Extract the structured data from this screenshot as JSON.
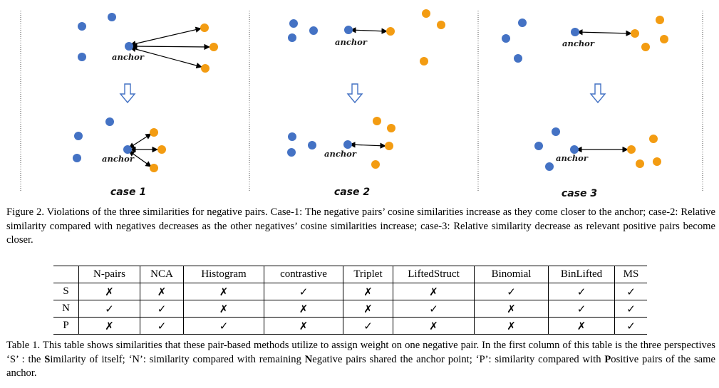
{
  "figure": {
    "anchor_label": "anchor",
    "cases": [
      {
        "label": "case 1"
      },
      {
        "label": "case 2"
      },
      {
        "label": "case 3"
      }
    ],
    "colors": {
      "negative": "#4472c4",
      "positive": "#f39c12",
      "arrow": "#4472c4"
    }
  },
  "figure_caption": "Figure 2. Violations of the three similarities for negative pairs. Case-1: The negative pairs’ cosine similarities increase as they come closer to the anchor; case-2: Relative similarity compared with negatives decreases as the other negatives’ cosine similarities increase; case-3: Relative similarity decrease as relevant positive pairs become closer.",
  "table": {
    "headers": [
      "",
      "N-pairs",
      "NCA",
      "Histogram",
      "contrastive",
      "Triplet",
      "LiftedStruct",
      "Binomial",
      "BinLifted",
      "MS"
    ],
    "rows": [
      {
        "label": "S",
        "cells": [
          "✗",
          "✗",
          "✗",
          "✓",
          "✗",
          "✗",
          "✓",
          "✓",
          "✓"
        ]
      },
      {
        "label": "N",
        "cells": [
          "✓",
          "✓",
          "✗",
          "✗",
          "✗",
          "✓",
          "✗",
          "✓",
          "✓"
        ]
      },
      {
        "label": "P",
        "cells": [
          "✗",
          "✓",
          "✓",
          "✗",
          "✓",
          "✗",
          "✗",
          "✗",
          "✓"
        ]
      }
    ]
  },
  "table_caption": "Table 1. This table shows similarities that these pair-based methods utilize to assign weight on one negative pair. In the first column of this table is the three perspectives ‘S’ : the Similarity of itself; ‘N’: similarity compared with remaining Negative pairs shared the anchor point; ‘P’: similarity compared with Positive pairs of the same anchor."
}
